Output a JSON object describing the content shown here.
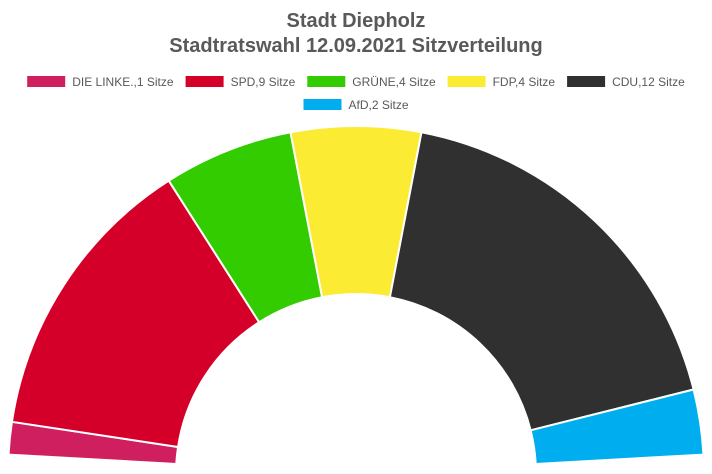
{
  "chart_data": {
    "type": "pie",
    "subtype": "half-donut",
    "title": "Stadt Diepholz",
    "subtitle": "Stadtratswahl 12.09.2021 Sitzverteilung",
    "legend_position": "top",
    "series": [
      {
        "name": "DIE LINKE.,1 Sitze",
        "value": 1,
        "color": "#D01F5E"
      },
      {
        "name": "SPD,9 Sitze",
        "value": 9,
        "color": "#D5002A"
      },
      {
        "name": "GRÜNE,4 Sitze",
        "value": 4,
        "color": "#33CC00"
      },
      {
        "name": "FDP,4 Sitze",
        "value": 4,
        "color": "#FBEC33"
      },
      {
        "name": "CDU,12 Sitze",
        "value": 12,
        "color": "#303030"
      },
      {
        "name": "AfD,2 Sitze",
        "value": 2,
        "color": "#00AEEF"
      }
    ]
  }
}
